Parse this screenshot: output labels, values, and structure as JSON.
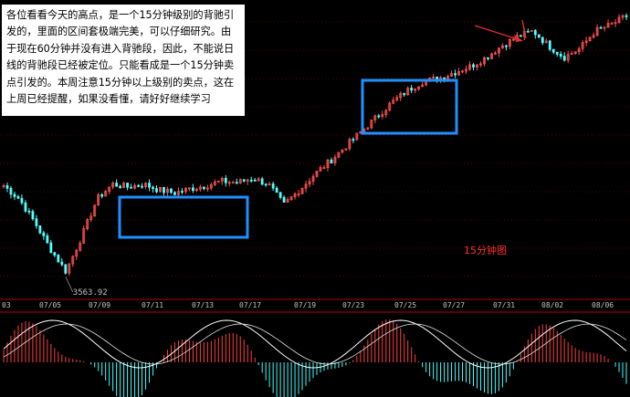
{
  "note_text": "各位看看今天的高点，是一个15分钟级别的背驰引发的，里面的区间套极端完美，可以仔细研究。由于现在60分钟并没有进入背驰段，因此，不能说日线的背驰段已经被定位。只能看成是一个15分钟卖点引发的。本周注意15分钟以上级别的卖点，这在上周已经提醒，如果没看懂，请好好继续学习",
  "chart_label": "15分钟图",
  "colors": {
    "background": "#000000",
    "up_candle": "#ff5050",
    "down_candle": "#54ffff",
    "macd_positive": "#ff4040",
    "macd_negative": "#40ffff",
    "dif_line": "#ffffff",
    "dea_line": "#ffff00",
    "highlight_box": "#1e90ff",
    "arrow": "#e03030",
    "label_text": "#ff3030",
    "axis_text": "#c0c0c0"
  },
  "chart_data": {
    "type": "candlestick",
    "title": "15分钟图",
    "x_tick_labels": [
      "03",
      "07/05",
      "07/09",
      "07/11",
      "07/13",
      "07/17",
      "07/19",
      "07/23",
      "07/25",
      "07/27",
      "07/31",
      "08/02",
      "08/06"
    ],
    "annotations": [
      {
        "type": "price_label",
        "text": "3563.92",
        "meaning": "low point near 07/06"
      },
      {
        "type": "box",
        "meaning": "consolidation zone 07/10 – 07/17"
      },
      {
        "type": "box",
        "meaning": "consolidation zone 07/24 – 07/27"
      },
      {
        "type": "arrow",
        "meaning": "points to high near 07/31 (divergence sell point)"
      }
    ],
    "price_series_approx": [
      3855,
      3810,
      3730,
      3640,
      3563.92,
      3680,
      3810,
      3860,
      3850,
      3860,
      3840,
      3830,
      3845,
      3855,
      3870,
      3865,
      3880,
      3860,
      3790,
      3840,
      3895,
      3940,
      3990,
      4040,
      4090,
      4140,
      4180,
      4210,
      4220,
      4240,
      4260,
      4290,
      4330,
      4360,
      4380,
      4330,
      4290,
      4320,
      4380,
      4400,
      4430
    ],
    "lower_panel": {
      "indicator": "MACD",
      "series": [
        "DIF",
        "DEA",
        "histogram"
      ]
    }
  }
}
